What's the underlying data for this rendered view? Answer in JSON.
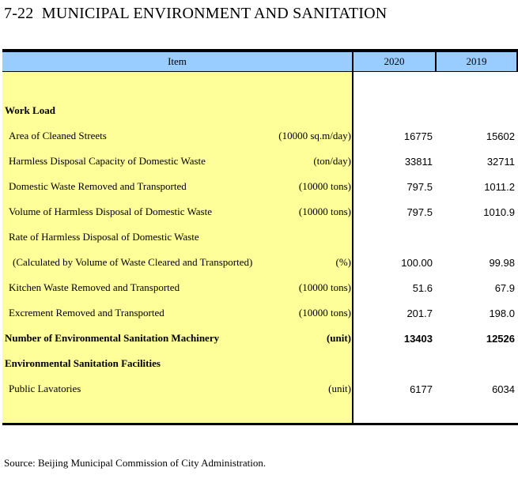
{
  "title": "7-22  MUNICIPAL ENVIRONMENT AND SANITATION",
  "source": "Source: Beijing Municipal Commission of City Administration.",
  "colors": {
    "header_bg": "#99CCFF",
    "item_column_bg": "#FFFF99",
    "border": "#000000",
    "text": "#000000"
  },
  "table": {
    "columns": [
      "Item",
      "2020",
      "2019"
    ],
    "rows": [
      {
        "label": "Work Load",
        "unit": "",
        "v2020": "",
        "v2019": ""
      },
      {
        "label": "Area of Cleaned Streets",
        "unit": "(10000 sq.m/day)",
        "v2020": "16775",
        "v2019": "15602"
      },
      {
        "label": "Harmless Disposal Capacity of Domestic Waste",
        "unit": "(ton/day)",
        "v2020": "33811",
        "v2019": "32711"
      },
      {
        "label": "Domestic Waste Removed and Transported",
        "unit": "(10000 tons)",
        "v2020": "797.5",
        "v2019": "1011.2"
      },
      {
        "label": "Volume of Harmless Disposal of Domestic Waste",
        "unit": "(10000 tons)",
        "v2020": "797.5",
        "v2019": "1010.9"
      },
      {
        "label": "Rate of Harmless Disposal of Domestic Waste",
        "unit": "",
        "v2020": "",
        "v2019": ""
      },
      {
        "label": "(Calculated by Volume of Waste Cleared and Transported)",
        "unit": "(%)",
        "v2020": "100.00",
        "v2019": "99.98"
      },
      {
        "label": "Kitchen Waste Removed and Transported",
        "unit": "(10000 tons)",
        "v2020": "51.6",
        "v2019": "67.9"
      },
      {
        "label": "Excrement Removed and Transported",
        "unit": "(10000 tons)",
        "v2020": "201.7",
        "v2019": "198.0"
      },
      {
        "label": "Number of Environmental Sanitation Machinery",
        "unit": "(unit)",
        "v2020": "13403",
        "v2019": "12526"
      },
      {
        "label": "Environmental Sanitation Facilities",
        "unit": "",
        "v2020": "",
        "v2019": ""
      },
      {
        "label": "Public Lavatories",
        "unit": "(unit)",
        "v2020": "6177",
        "v2019": "6034"
      }
    ]
  }
}
